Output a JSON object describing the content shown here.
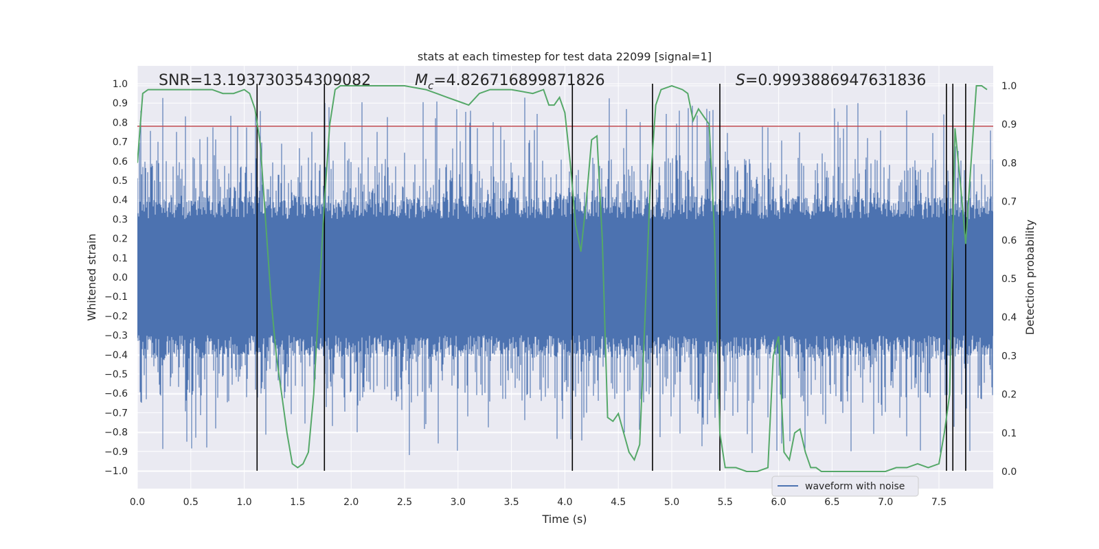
{
  "chart_data": {
    "type": "line",
    "title": "stats at each timestep for test data 22099 [signal=1]",
    "xlabel": "Time (s)",
    "ylabel_left": "Whitened strain",
    "ylabel_right": "Detection probability",
    "xlim": [
      0.0,
      8.0
    ],
    "ylim_left": [
      -1.1,
      1.1
    ],
    "ylim_right": [
      -0.05,
      1.05
    ],
    "xticks": [
      "0.0",
      "0.5",
      "1.0",
      "1.5",
      "2.0",
      "2.5",
      "3.0",
      "3.5",
      "4.0",
      "4.5",
      "5.0",
      "5.5",
      "6.0",
      "6.5",
      "7.0",
      "7.5"
    ],
    "yticks_left": [
      "−1.0",
      "−0.9",
      "−0.8",
      "−0.7",
      "−0.6",
      "−0.5",
      "−0.4",
      "−0.3",
      "−0.2",
      "−0.1",
      "0.0",
      "0.1",
      "0.2",
      "0.3",
      "0.4",
      "0.5",
      "0.6",
      "0.7",
      "0.8",
      "0.9",
      "1.0"
    ],
    "yticks_right": [
      "0.0",
      "0.1",
      "0.2",
      "0.3",
      "0.4",
      "0.5",
      "0.6",
      "0.7",
      "0.8",
      "0.9",
      "1.0"
    ],
    "grid": true,
    "legend_position": "bottom-right",
    "annotations": {
      "snr": "SNR=13.193730354309082",
      "mc_symbol": "M",
      "mc_sub": "c",
      "mc_value": "=4.826716899871826",
      "s_symbol": "S",
      "s_value": "=0.9993886947631836"
    },
    "series": [
      {
        "name": "waveform with noise",
        "axis": "left",
        "color": "#4c72b0",
        "description_style": "dense noise band",
        "band_core": [
          -0.3,
          0.3
        ],
        "spike_extent": [
          -0.92,
          0.94
        ]
      },
      {
        "axis": "right",
        "color": "#55a868",
        "x": [
          0.0,
          0.05,
          0.1,
          0.2,
          0.3,
          0.4,
          0.5,
          0.6,
          0.7,
          0.8,
          0.9,
          1.0,
          1.05,
          1.1,
          1.15,
          1.2,
          1.25,
          1.3,
          1.35,
          1.4,
          1.45,
          1.5,
          1.55,
          1.6,
          1.65,
          1.7,
          1.75,
          1.8,
          1.85,
          1.9,
          2.0,
          2.2,
          2.5,
          2.7,
          2.8,
          2.9,
          3.0,
          3.1,
          3.2,
          3.3,
          3.5,
          3.7,
          3.8,
          3.85,
          3.9,
          3.95,
          4.0,
          4.05,
          4.1,
          4.15,
          4.2,
          4.25,
          4.3,
          4.35,
          4.4,
          4.45,
          4.5,
          4.55,
          4.6,
          4.65,
          4.7,
          4.75,
          4.8,
          4.85,
          4.9,
          5.0,
          5.1,
          5.15,
          5.2,
          5.25,
          5.3,
          5.35,
          5.4,
          5.45,
          5.5,
          5.55,
          5.6,
          5.7,
          5.8,
          5.9,
          5.95,
          6.0,
          6.05,
          6.1,
          6.15,
          6.2,
          6.25,
          6.3,
          6.35,
          6.4,
          6.5,
          6.6,
          6.7,
          6.8,
          6.9,
          7.0,
          7.1,
          7.2,
          7.3,
          7.4,
          7.5,
          7.55,
          7.6,
          7.65,
          7.7,
          7.75,
          7.8,
          7.85,
          7.9,
          7.95
        ],
        "y": [
          0.8,
          0.98,
          0.99,
          0.99,
          0.99,
          0.99,
          0.99,
          0.99,
          0.99,
          0.98,
          0.98,
          0.99,
          0.98,
          0.94,
          0.85,
          0.65,
          0.45,
          0.3,
          0.2,
          0.1,
          0.02,
          0.01,
          0.02,
          0.05,
          0.2,
          0.45,
          0.7,
          0.9,
          0.99,
          1.0,
          1.0,
          1.0,
          1.0,
          0.99,
          0.98,
          0.97,
          0.96,
          0.95,
          0.98,
          0.99,
          0.99,
          0.98,
          0.99,
          0.95,
          0.95,
          0.97,
          0.93,
          0.8,
          0.64,
          0.57,
          0.7,
          0.86,
          0.87,
          0.6,
          0.14,
          0.13,
          0.15,
          0.1,
          0.05,
          0.03,
          0.07,
          0.4,
          0.75,
          0.95,
          0.99,
          1.0,
          0.99,
          0.98,
          0.91,
          0.94,
          0.92,
          0.9,
          0.62,
          0.1,
          0.01,
          0.01,
          0.01,
          0.0,
          0.0,
          0.01,
          0.3,
          0.35,
          0.05,
          0.03,
          0.1,
          0.11,
          0.05,
          0.01,
          0.01,
          0.0,
          0.0,
          0.0,
          0.0,
          0.0,
          0.0,
          0.0,
          0.01,
          0.01,
          0.02,
          0.01,
          0.02,
          0.1,
          0.2,
          0.89,
          0.75,
          0.59,
          0.8,
          1.0,
          1.0,
          0.99
        ]
      }
    ],
    "threshold_line": {
      "axis": "left",
      "value": 0.78,
      "color": "#c44e52"
    },
    "vertical_lines_x": [
      1.12,
      1.75,
      4.07,
      4.82,
      5.45,
      7.57,
      7.63,
      7.75
    ],
    "vertical_line_color": "#000000"
  }
}
